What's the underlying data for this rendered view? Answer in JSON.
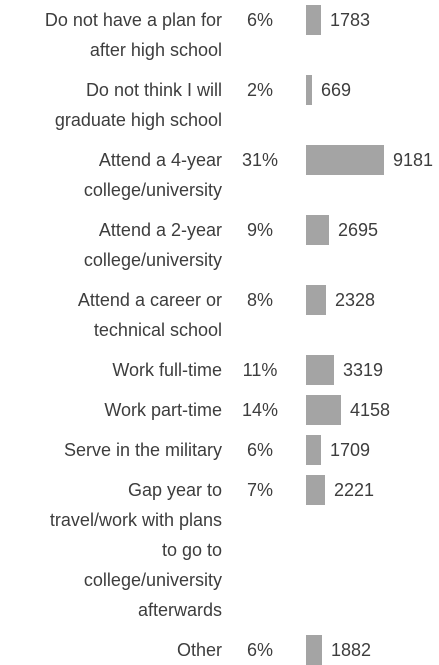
{
  "chart_data": {
    "type": "bar",
    "orientation": "horizontal",
    "title": "",
    "xlabel": "",
    "ylabel": "",
    "categories": [
      "Do not have a plan for after high school",
      "Do not think I will graduate high school",
      "Attend a 4-year college/university",
      "Attend a 2-year college/university",
      "Attend a career or technical school",
      "Work full-time",
      "Work part-time",
      "Serve in the military",
      "Gap year to travel/work with plans to go to college/university afterwards",
      "Other"
    ],
    "percentages": [
      "6%",
      "2%",
      "31%",
      "9%",
      "8%",
      "11%",
      "14%",
      "6%",
      "7%",
      "6%"
    ],
    "values": [
      1783,
      669,
      9181,
      2695,
      2328,
      3319,
      4158,
      1709,
      2221,
      1882
    ],
    "bar_color": "#a4a4a4",
    "grid": false,
    "legend": "none"
  }
}
